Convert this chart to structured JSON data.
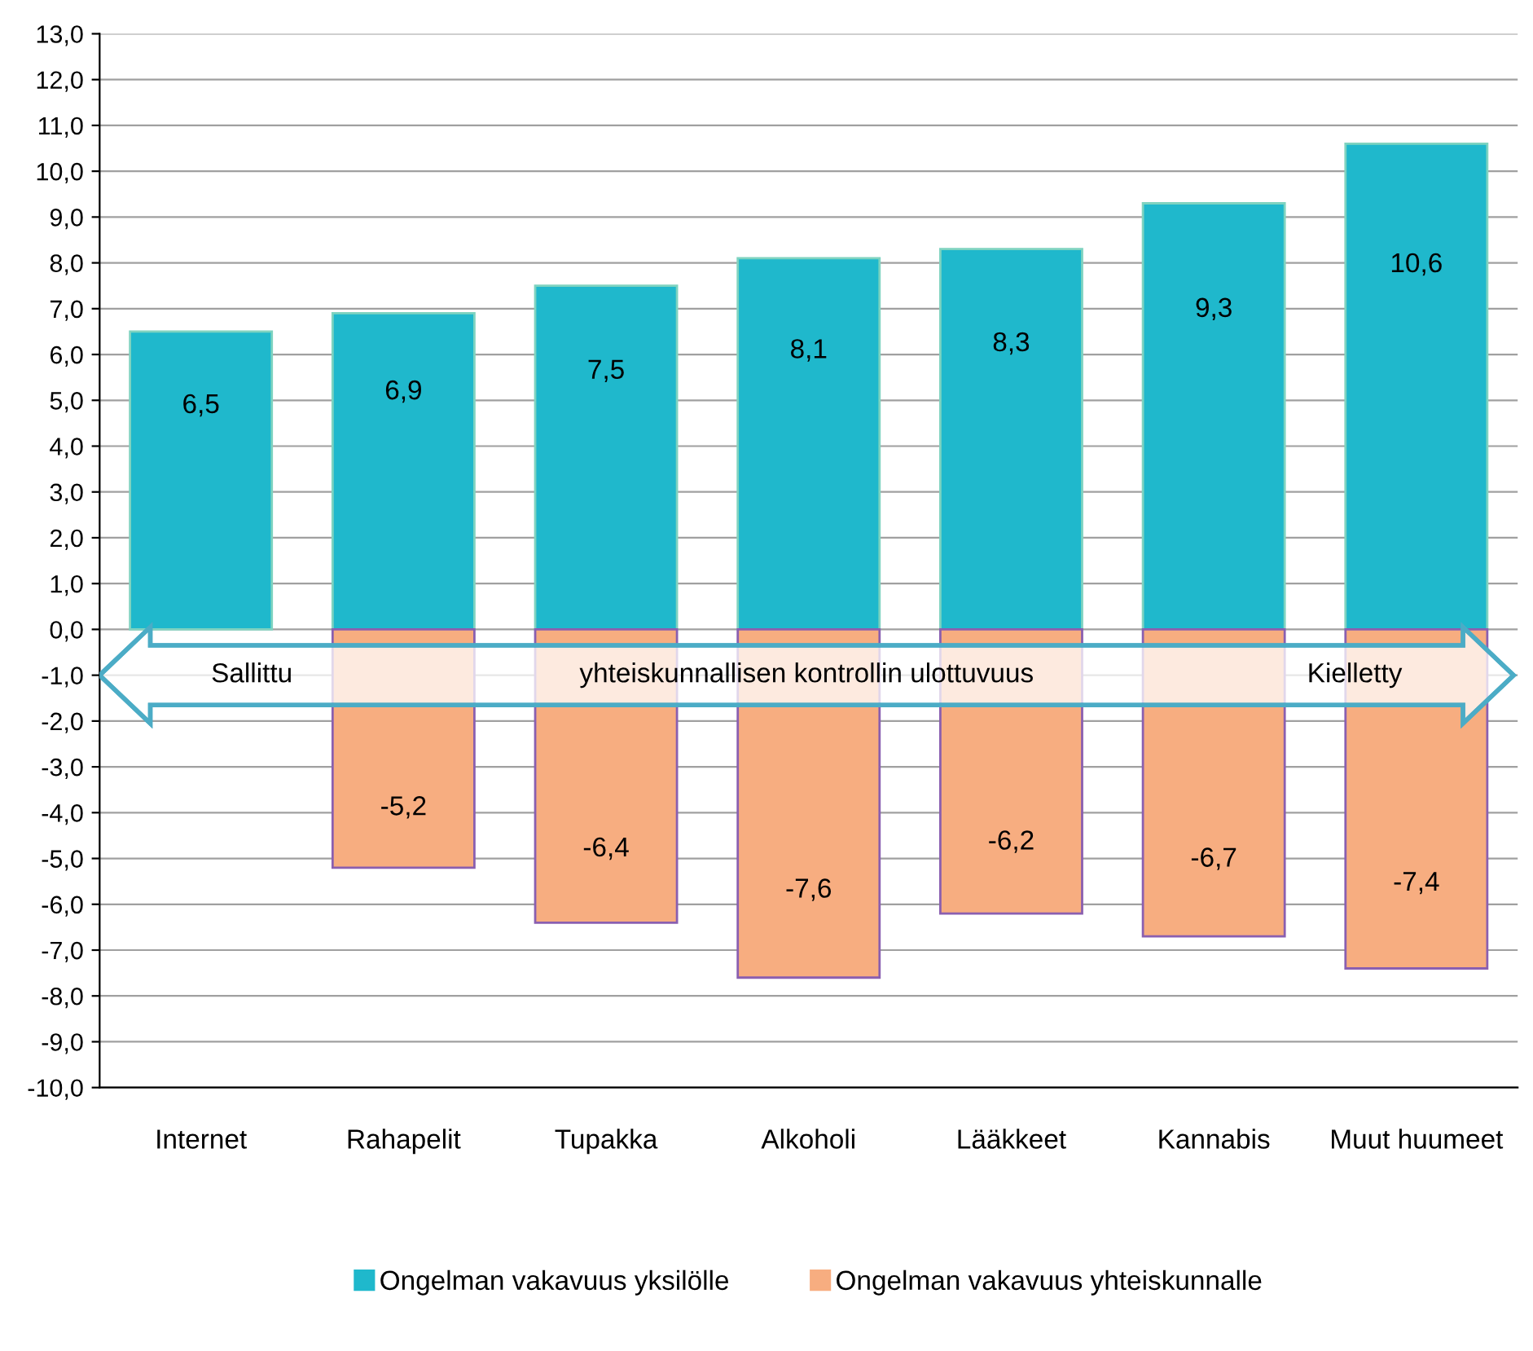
{
  "chart_data": {
    "type": "bar",
    "categories": [
      "Internet",
      "Rahapelit",
      "Tupakka",
      "Alkoholi",
      "Lääkkeet",
      "Kannabis",
      "Muut huumeet"
    ],
    "series": [
      {
        "name": "Ongelman vakavuus yksilölle",
        "color": "#1fb8cc",
        "values": [
          6.5,
          6.9,
          7.5,
          8.1,
          8.3,
          9.3,
          10.6
        ],
        "value_labels": [
          "6,5",
          "6,9",
          "7,5",
          "8,1",
          "8,3",
          "9,3",
          "10,6"
        ]
      },
      {
        "name": "Ongelman vakavuus yhteiskunnalle",
        "color": "#f7ad80",
        "values": [
          null,
          -5.2,
          -6.4,
          -7.6,
          -6.2,
          -6.7,
          -7.4
        ],
        "value_labels": [
          null,
          "-5,2",
          "-6,4",
          "-7,6",
          "-6,2",
          "-6,7",
          "-7,4"
        ]
      }
    ],
    "ylim": [
      -10,
      13
    ],
    "yticks": [
      {
        "value": -10,
        "label": "-10,0"
      },
      {
        "value": -9,
        "label": "-9,0"
      },
      {
        "value": -8,
        "label": "-8,0"
      },
      {
        "value": -7,
        "label": "-7,0"
      },
      {
        "value": -6,
        "label": "-6,0"
      },
      {
        "value": -5,
        "label": "-5,0"
      },
      {
        "value": -4,
        "label": "-4,0"
      },
      {
        "value": -3,
        "label": "-3,0"
      },
      {
        "value": -2,
        "label": "-2,0"
      },
      {
        "value": -1,
        "label": "-1,0"
      },
      {
        "value": 0,
        "label": "0,0"
      },
      {
        "value": 1,
        "label": "1,0"
      },
      {
        "value": 2,
        "label": "2,0"
      },
      {
        "value": 3,
        "label": "3,0"
      },
      {
        "value": 4,
        "label": "4,0"
      },
      {
        "value": 5,
        "label": "5,0"
      },
      {
        "value": 6,
        "label": "6,0"
      },
      {
        "value": 7,
        "label": "7,0"
      },
      {
        "value": 8,
        "label": "8,0"
      },
      {
        "value": 9,
        "label": "9,0"
      },
      {
        "value": 10,
        "label": "10,0"
      },
      {
        "value": 11,
        "label": "11,0"
      },
      {
        "value": 12,
        "label": "12,0"
      },
      {
        "value": 13,
        "label": "13,0"
      }
    ],
    "grid": "y",
    "legend": "bottom",
    "stacked": true,
    "annotations": [
      "Sallittu",
      "yhteiskunnallisen kontrollin ulottuvuus",
      "Kielletty"
    ]
  }
}
